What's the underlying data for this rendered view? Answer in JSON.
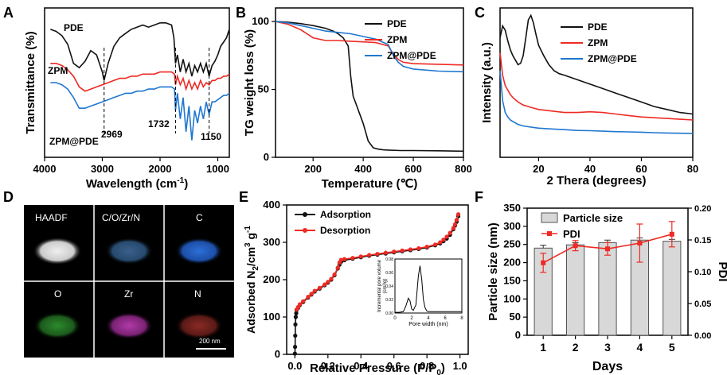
{
  "panels": {
    "A": {
      "letter": "A",
      "xlabel_pre": "Wavelength (cm",
      "xlabel_sup": "-1",
      "xlabel_post": ")",
      "ylabel": "Transmittance (%)",
      "labels": [
        "PDE",
        "ZPM",
        "ZPM@PDE"
      ],
      "peaks": [
        "2969",
        "1732",
        "1150"
      ]
    },
    "B": {
      "letter": "B",
      "xlabel": "Temperature (℃)",
      "ylabel": "TG weight loss (%)"
    },
    "C": {
      "letter": "C",
      "xlabel": "2 Thera (degrees)",
      "ylabel": "Intensity (a.u.)"
    },
    "D": {
      "letter": "D",
      "tiles": [
        "HAADF",
        "C/O/Zr/N",
        "C",
        "O",
        "Zr",
        "N"
      ],
      "scalebar": "200 nm"
    },
    "E": {
      "letter": "E",
      "xlabel": "Relative Pressure (P/P",
      "xlabel_sub": "0",
      "xlabel_post": ")",
      "ylabel_pre": "Adsorbed N",
      "ylabel_sub": "2",
      "ylabel_post": "/cm",
      "ylabel_sup": "3",
      "ylabel_end": " g",
      "ylabel_sup2": "-1",
      "inset_xlabel": "Pore width (nm)",
      "inset_ylabel1": "Incremental pore volume",
      "inset_ylabel2": "(cm³/g)"
    },
    "F": {
      "letter": "F",
      "xlabel": "Days",
      "ylabel": "Particle size (nm)",
      "y2label": "PDI"
    }
  },
  "colors": {
    "black": "#111111",
    "red": "#ee2a24",
    "blue": "#1f77d0",
    "bar": "#d8d8d8"
  },
  "chart_data": [
    {
      "id": "A",
      "type": "line",
      "title": "",
      "xlabel": "Wavelength (cm-1)",
      "ylabel": "Transmittance (%)",
      "xlim": [
        4000,
        800
      ],
      "x_ticks": [
        4000,
        3000,
        2000,
        1000
      ],
      "y_ticks_shown": false,
      "series": [
        {
          "name": "PDE",
          "color_key": "black",
          "label_at": [
            3850,
            100
          ],
          "x": [
            3900,
            3800,
            3700,
            3600,
            3500,
            3400,
            3300,
            3200,
            3100,
            3000,
            2969,
            2900,
            2800,
            2700,
            2600,
            2500,
            2400,
            2300,
            2200,
            2100,
            2000,
            1900,
            1800,
            1760,
            1732,
            1700,
            1650,
            1600,
            1550,
            1500,
            1450,
            1400,
            1350,
            1300,
            1250,
            1200,
            1150,
            1100,
            1050,
            1000,
            950,
            900,
            850,
            800
          ],
          "y": [
            100,
            99,
            97,
            93,
            84,
            82,
            85,
            90,
            88,
            80,
            76,
            84,
            92,
            96,
            98,
            100,
            101,
            102,
            101,
            102,
            103,
            103,
            102,
            96,
            84,
            88,
            80,
            86,
            80,
            84,
            78,
            83,
            80,
            84,
            80,
            84,
            78,
            83,
            85,
            88,
            92,
            94,
            96,
            100
          ]
        },
        {
          "name": "ZPM",
          "color_key": "red",
          "label_at": [
            3700,
            80
          ],
          "x": [
            3900,
            3800,
            3700,
            3600,
            3500,
            3400,
            3300,
            3200,
            3100,
            3000,
            2900,
            2800,
            2700,
            2600,
            2500,
            2400,
            2300,
            2200,
            2100,
            2000,
            1900,
            1800,
            1750,
            1732,
            1700,
            1650,
            1600,
            1550,
            1500,
            1450,
            1400,
            1350,
            1300,
            1250,
            1200,
            1150,
            1100,
            1050,
            1000,
            950,
            900,
            850,
            800
          ],
          "y": [
            84,
            84,
            83,
            81,
            78,
            73,
            71,
            72,
            73,
            74,
            75,
            76,
            77,
            77,
            78,
            78,
            79,
            79,
            79,
            80,
            80,
            80,
            79,
            74,
            78,
            74,
            77,
            72,
            76,
            72,
            75,
            72,
            76,
            73,
            75,
            74,
            76,
            76,
            77,
            77,
            78,
            78,
            79
          ]
        },
        {
          "name": "ZPM@PDE",
          "color_key": "blue",
          "label_at": [
            3400,
            58
          ],
          "x": [
            3900,
            3800,
            3700,
            3600,
            3500,
            3400,
            3300,
            3200,
            3100,
            3000,
            2900,
            2800,
            2700,
            2600,
            2500,
            2400,
            2300,
            2200,
            2100,
            2000,
            1900,
            1800,
            1750,
            1732,
            1700,
            1650,
            1600,
            1550,
            1500,
            1450,
            1400,
            1350,
            1300,
            1250,
            1200,
            1150,
            1100,
            1050,
            1000,
            950,
            900,
            850,
            800
          ],
          "y": [
            75,
            75,
            74,
            72,
            68,
            63,
            63,
            64,
            65,
            66,
            67,
            68,
            69,
            70,
            70,
            71,
            71,
            72,
            72,
            73,
            73,
            73,
            72,
            62,
            70,
            58,
            68,
            52,
            64,
            48,
            62,
            56,
            64,
            58,
            66,
            60,
            66,
            66,
            67,
            68,
            69,
            69,
            70
          ]
        }
      ],
      "peak_marks": [
        2969,
        1732,
        1150
      ]
    },
    {
      "id": "B",
      "type": "line",
      "title": "",
      "xlabel": "Temperature (℃)",
      "ylabel": "TG weight loss (%)",
      "xlim": [
        50,
        800
      ],
      "ylim": [
        0,
        110
      ],
      "x_ticks": [
        200,
        400,
        600,
        800
      ],
      "y_ticks": [
        0,
        50,
        100
      ],
      "legend": "top-right",
      "series": [
        {
          "name": "PDE",
          "color_key": "black",
          "x": [
            50,
            100,
            150,
            200,
            250,
            280,
            300,
            320,
            340,
            350,
            360,
            370,
            380,
            400,
            420,
            440,
            460,
            480,
            500,
            550,
            600,
            700,
            800
          ],
          "y": [
            100,
            99.5,
            98.5,
            97,
            95,
            93,
            91,
            88,
            82,
            60,
            45,
            40,
            35,
            25,
            12,
            7,
            6,
            5.5,
            5.3,
            5,
            5,
            4.8,
            4.5
          ]
        },
        {
          "name": "ZPM",
          "color_key": "red",
          "x": [
            50,
            100,
            150,
            200,
            250,
            300,
            350,
            400,
            450,
            500,
            520,
            540,
            560,
            600,
            700,
            800
          ],
          "y": [
            100,
            98,
            94,
            88,
            86,
            86,
            85.5,
            85,
            84.5,
            82,
            76,
            72,
            70,
            69,
            68.5,
            68
          ]
        },
        {
          "name": "ZPM@PDE",
          "color_key": "blue",
          "x": [
            50,
            100,
            150,
            200,
            250,
            300,
            350,
            400,
            450,
            500,
            520,
            540,
            560,
            600,
            700,
            800
          ],
          "y": [
            100,
            99,
            97,
            95,
            93,
            92,
            91,
            89,
            87,
            83,
            75,
            70,
            67,
            65,
            63.5,
            63
          ]
        }
      ]
    },
    {
      "id": "C",
      "type": "line",
      "title": "",
      "xlabel": "2 Thera (degrees)",
      "ylabel": "Intensity (a.u.)",
      "xlim": [
        5,
        80
      ],
      "x_ticks": [
        20,
        40,
        60,
        80
      ],
      "y_ticks_shown": false,
      "legend": "top-right",
      "series": [
        {
          "name": "PDE",
          "color_key": "black",
          "x": [
            5,
            6,
            7,
            8,
            9,
            10,
            11,
            12,
            13,
            14,
            15,
            16,
            17,
            18,
            19,
            20,
            22,
            24,
            26,
            28,
            30,
            35,
            40,
            45,
            50,
            55,
            60,
            65,
            70,
            75,
            80
          ],
          "y": [
            80,
            88,
            85,
            78,
            72,
            68,
            65,
            62,
            63,
            68,
            80,
            92,
            95,
            90,
            82,
            75,
            68,
            62,
            58,
            56,
            55,
            52,
            49,
            46,
            43,
            40,
            37,
            34,
            32,
            30,
            29
          ]
        },
        {
          "name": "ZPM",
          "color_key": "red",
          "x": [
            5,
            6,
            7,
            8,
            9,
            10,
            12,
            14,
            16,
            18,
            20,
            25,
            30,
            35,
            40,
            45,
            50,
            55,
            60,
            65,
            70,
            75,
            80
          ],
          "y": [
            70,
            55,
            48,
            45,
            42,
            40,
            37,
            35,
            34,
            33,
            32,
            31,
            30,
            30,
            30.5,
            30,
            29,
            28,
            27,
            26.5,
            26,
            25.5,
            25
          ]
        },
        {
          "name": "ZPM@PDE",
          "color_key": "blue",
          "x": [
            5,
            6,
            7,
            8,
            9,
            10,
            12,
            14,
            16,
            18,
            20,
            25,
            30,
            35,
            40,
            45,
            50,
            55,
            60,
            65,
            70,
            75,
            80
          ],
          "y": [
            58,
            38,
            30,
            27,
            25,
            24,
            22,
            21,
            20.5,
            20,
            19.5,
            19,
            18.5,
            18,
            17.8,
            17.5,
            17.2,
            17,
            16.8,
            16.5,
            16.3,
            16.1,
            16
          ]
        }
      ]
    },
    {
      "id": "E",
      "type": "line",
      "title": "",
      "xlabel": "Relative Pressure (P/P0)",
      "ylabel": "Adsorbed N2/cm3 g-1",
      "xlim": [
        -0.05,
        1.05
      ],
      "ylim": [
        0,
        400
      ],
      "x_ticks": [
        0.0,
        0.2,
        0.4,
        0.6,
        0.8,
        1.0
      ],
      "y_ticks": [
        0,
        100,
        200,
        300,
        400
      ],
      "legend": "top-left",
      "series": [
        {
          "name": "Adsorption",
          "color_key": "black",
          "x": [
            0.0,
            0.001,
            0.002,
            0.003,
            0.005,
            0.008,
            0.01,
            0.02,
            0.03,
            0.05,
            0.08,
            0.1,
            0.12,
            0.15,
            0.18,
            0.2,
            0.22,
            0.24,
            0.26,
            0.27,
            0.28,
            0.3,
            0.35,
            0.4,
            0.45,
            0.5,
            0.55,
            0.6,
            0.65,
            0.7,
            0.75,
            0.8,
            0.85,
            0.88,
            0.9,
            0.92,
            0.94,
            0.96,
            0.97,
            0.98,
            0.99
          ],
          "y": [
            2,
            20,
            50,
            80,
            100,
            110,
            118,
            125,
            132,
            140,
            152,
            160,
            168,
            176,
            185,
            192,
            200,
            212,
            230,
            240,
            248,
            252,
            256,
            260,
            264,
            267,
            270,
            273,
            276,
            279,
            282,
            286,
            292,
            297,
            303,
            310,
            320,
            335,
            345,
            355,
            370
          ]
        },
        {
          "name": "Desorption",
          "color_key": "red",
          "x": [
            0.99,
            0.98,
            0.97,
            0.96,
            0.94,
            0.92,
            0.9,
            0.88,
            0.85,
            0.8,
            0.75,
            0.7,
            0.65,
            0.6,
            0.55,
            0.5,
            0.45,
            0.4,
            0.35,
            0.3,
            0.28,
            0.27,
            0.26,
            0.24,
            0.22,
            0.2,
            0.18,
            0.15,
            0.12,
            0.1,
            0.08,
            0.05,
            0.03,
            0.02,
            0.01
          ],
          "y": [
            375,
            360,
            348,
            338,
            325,
            315,
            307,
            300,
            294,
            288,
            284,
            281,
            278,
            275,
            272,
            269,
            266,
            262,
            258,
            255,
            253,
            246,
            232,
            214,
            202,
            194,
            187,
            178,
            170,
            162,
            154,
            142,
            134,
            127,
            120
          ]
        }
      ],
      "inset": {
        "xlabel": "Pore width (nm)",
        "ylabel": "Incremental pore volume (cm³/g)",
        "xlim": [
          0,
          8
        ],
        "ylim": [
          0,
          0.08
        ],
        "x_ticks": [
          0,
          2,
          4,
          6,
          8
        ],
        "y_ticks": [
          0.0,
          0.02,
          0.04,
          0.06,
          0.08
        ],
        "x": [
          0,
          0.5,
          1,
          1.3,
          1.6,
          1.8,
          2,
          2.2,
          2.5,
          2.8,
          3,
          3.2,
          3.4,
          3.6,
          3.8,
          4,
          4.5,
          5,
          6,
          7,
          8
        ],
        "y": [
          0.001,
          0.001,
          0.002,
          0.01,
          0.022,
          0.018,
          0.006,
          0.004,
          0.012,
          0.055,
          0.07,
          0.05,
          0.02,
          0.008,
          0.003,
          0.002,
          0.002,
          0.002,
          0.002,
          0.002,
          0.002
        ]
      }
    },
    {
      "id": "F",
      "type": "bar",
      "title": "",
      "xlabel": "Days",
      "ylabel": "Particle size (nm)",
      "y2label": "PDI",
      "categories": [
        "1",
        "2",
        "3",
        "4",
        "5"
      ],
      "ylim": [
        0,
        350
      ],
      "y_ticks": [
        0,
        50,
        100,
        150,
        200,
        250,
        300,
        350
      ],
      "y2lim": [
        0,
        0.2
      ],
      "y2_ticks": [
        "0.00",
        "0.05",
        "0.10",
        "0.15",
        "0.20"
      ],
      "legend": "top-left",
      "series": [
        {
          "name": "Particle size",
          "kind": "bar",
          "values": [
            240,
            249,
            255,
            262,
            259
          ],
          "errors": [
            8,
            6,
            7,
            6,
            5
          ]
        },
        {
          "name": "PDI",
          "kind": "line",
          "values": [
            0.114,
            0.141,
            0.136,
            0.145,
            0.159
          ],
          "errors": [
            0.015,
            0.008,
            0.01,
            0.03,
            0.02
          ]
        }
      ]
    }
  ]
}
